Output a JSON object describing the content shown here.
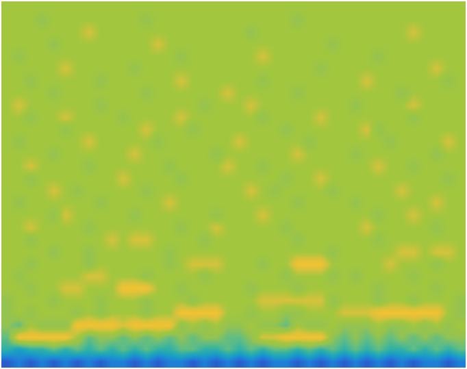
{
  "chart_data": {
    "type": "heatmap",
    "color": "parula",
    "tick_labels": false,
    "zlim": [
      0,
      10
    ],
    "z": [
      [
        7,
        7,
        7,
        7,
        7,
        7,
        7,
        7,
        7,
        7,
        7,
        7,
        7,
        7,
        7,
        7,
        7,
        7,
        7,
        7,
        7,
        7,
        7,
        7,
        7,
        7,
        7,
        7,
        7,
        7,
        7,
        7,
        7,
        7,
        7,
        7,
        7,
        7,
        7,
        7
      ],
      [
        7,
        7,
        7,
        6,
        7,
        7,
        7,
        7,
        7,
        7,
        7,
        7,
        6,
        7,
        7,
        7,
        7,
        7,
        7,
        7,
        7,
        7,
        7,
        7,
        7,
        6,
        7,
        7,
        7,
        7,
        7,
        7,
        7,
        7,
        7,
        7,
        7,
        7,
        7,
        7
      ],
      [
        7,
        7,
        7,
        7,
        7,
        7,
        7,
        8,
        7,
        7,
        7,
        7,
        7,
        7,
        7,
        7,
        7,
        7,
        7,
        7,
        7,
        6,
        7,
        7,
        7,
        7,
        7,
        7,
        7,
        7,
        7,
        7,
        7,
        7,
        7,
        8,
        7,
        7,
        7,
        7
      ],
      [
        7,
        7,
        7,
        7,
        6,
        7,
        7,
        7,
        7,
        7,
        7,
        7,
        7,
        8,
        7,
        7,
        7,
        7,
        7,
        7,
        7,
        7,
        7,
        7,
        7,
        7,
        7,
        7,
        6,
        7,
        7,
        7,
        7,
        7,
        7,
        7,
        7,
        7,
        7,
        7
      ],
      [
        7,
        6,
        7,
        7,
        7,
        7,
        7,
        7,
        7,
        7,
        7,
        7,
        7,
        7,
        7,
        6,
        7,
        7,
        7,
        7,
        7,
        7,
        8,
        7,
        7,
        7,
        7,
        7,
        7,
        7,
        7,
        7,
        6,
        7,
        7,
        7,
        7,
        7,
        7,
        7
      ],
      [
        7,
        7,
        7,
        7,
        7,
        8,
        7,
        7,
        7,
        7,
        7,
        6,
        7,
        7,
        7,
        7,
        7,
        7,
        7,
        7,
        7,
        7,
        7,
        7,
        7,
        7,
        7,
        6,
        7,
        7,
        7,
        7,
        7,
        7,
        7,
        7,
        7,
        8,
        7,
        7
      ],
      [
        7,
        7,
        6,
        7,
        7,
        7,
        7,
        7,
        6,
        7,
        7,
        7,
        7,
        7,
        7,
        8,
        7,
        7,
        7,
        7,
        7,
        7,
        6,
        7,
        7,
        7,
        7,
        7,
        7,
        7,
        7,
        8,
        7,
        7,
        7,
        7,
        7,
        7,
        6,
        7
      ],
      [
        7,
        7,
        7,
        7,
        6,
        7,
        7,
        7,
        7,
        7,
        7,
        7,
        6,
        7,
        7,
        7,
        7,
        7,
        7,
        8,
        7,
        7,
        7,
        7,
        7,
        6,
        7,
        7,
        7,
        7,
        7,
        7,
        7,
        7,
        6,
        7,
        7,
        7,
        7,
        7
      ],
      [
        7,
        8,
        7,
        7,
        7,
        7,
        7,
        7,
        6,
        7,
        7,
        7,
        7,
        7,
        7,
        7,
        7,
        6,
        7,
        7,
        7,
        8,
        7,
        7,
        7,
        7,
        7,
        7,
        7,
        7,
        6,
        7,
        7,
        7,
        7,
        8,
        7,
        7,
        7,
        7
      ],
      [
        7,
        7,
        6,
        7,
        7,
        8,
        7,
        7,
        7,
        7,
        6,
        7,
        7,
        7,
        7,
        8,
        7,
        7,
        7,
        7,
        7,
        7,
        6,
        7,
        7,
        7,
        7,
        8,
        7,
        7,
        7,
        7,
        7,
        7,
        7,
        6,
        7,
        7,
        7,
        7
      ],
      [
        7,
        7,
        7,
        7,
        7,
        6,
        7,
        7,
        7,
        7,
        7,
        7,
        8,
        7,
        7,
        7,
        6,
        7,
        7,
        7,
        7,
        7,
        7,
        7,
        6,
        7,
        7,
        7,
        7,
        7,
        7,
        8,
        6,
        7,
        7,
        7,
        7,
        7,
        7,
        7
      ],
      [
        7,
        6,
        7,
        7,
        7,
        7,
        7,
        8,
        7,
        7,
        7,
        7,
        7,
        6,
        7,
        7,
        7,
        7,
        7,
        7,
        8,
        7,
        7,
        7,
        7,
        7,
        6,
        7,
        7,
        7,
        7,
        7,
        7,
        6,
        7,
        7,
        7,
        7,
        8,
        7
      ],
      [
        7,
        7,
        7,
        7,
        6,
        7,
        7,
        7,
        7,
        7,
        7,
        8,
        7,
        7,
        7,
        7,
        7,
        7,
        6,
        7,
        7,
        7,
        7,
        7,
        7,
        8,
        7,
        7,
        7,
        7,
        6,
        7,
        7,
        7,
        7,
        7,
        7,
        6,
        7,
        7
      ],
      [
        7,
        7,
        8,
        7,
        7,
        7,
        7,
        6,
        7,
        7,
        7,
        7,
        7,
        7,
        6,
        7,
        7,
        7,
        7,
        8,
        7,
        7,
        6,
        7,
        7,
        7,
        7,
        7,
        7,
        7,
        7,
        7,
        8,
        7,
        7,
        6,
        7,
        7,
        7,
        7
      ],
      [
        7,
        7,
        6,
        7,
        7,
        7,
        7,
        7,
        7,
        7,
        8,
        7,
        7,
        7,
        7,
        6,
        7,
        7,
        7,
        7,
        7,
        7,
        7,
        7,
        6,
        7,
        7,
        8,
        7,
        7,
        7,
        7,
        7,
        7,
        7,
        7,
        7,
        7,
        6,
        7
      ],
      [
        7,
        7,
        7,
        7,
        8,
        7,
        6,
        7,
        7,
        7,
        7,
        7,
        6,
        7,
        7,
        7,
        7,
        7,
        7,
        7,
        7,
        8,
        7,
        6,
        7,
        7,
        7,
        7,
        6,
        7,
        7,
        7,
        7,
        7,
        8,
        7,
        7,
        7,
        7,
        7
      ],
      [
        7,
        6,
        7,
        7,
        7,
        7,
        7,
        7,
        6,
        7,
        7,
        7,
        7,
        7,
        8,
        7,
        7,
        7,
        7,
        7,
        7,
        7,
        7,
        7,
        7,
        6,
        7,
        7,
        7,
        7,
        6,
        7,
        7,
        7,
        7,
        7,
        7,
        8,
        7,
        7
      ],
      [
        7,
        7,
        7,
        7,
        6,
        8,
        7,
        7,
        7,
        7,
        7,
        6,
        7,
        7,
        7,
        7,
        7,
        7,
        6,
        7,
        7,
        7,
        8,
        7,
        7,
        7,
        7,
        7,
        7,
        7,
        7,
        7,
        6,
        7,
        7,
        8,
        7,
        7,
        7,
        7
      ],
      [
        7,
        7,
        8,
        7,
        7,
        7,
        7,
        6,
        7,
        7,
        7,
        7,
        7,
        7,
        7,
        6,
        7,
        7,
        8,
        7,
        7,
        7,
        7,
        7,
        6,
        7,
        7,
        7,
        7,
        7,
        7,
        8,
        7,
        7,
        7,
        7,
        7,
        6,
        7,
        7
      ],
      [
        7,
        7,
        6,
        7,
        7,
        7,
        7,
        7,
        7,
        8,
        7,
        8,
        8,
        7,
        7,
        7,
        7,
        6,
        7,
        7,
        7,
        7,
        7,
        7,
        7,
        6,
        7,
        7,
        7,
        7,
        7,
        7,
        6,
        7,
        7,
        7,
        7,
        7,
        7,
        7
      ],
      [
        7,
        7,
        7,
        7,
        6,
        7,
        7,
        6,
        7,
        7,
        7,
        7,
        7,
        7,
        6,
        7,
        7,
        7,
        7,
        7,
        7,
        7,
        7,
        7,
        7,
        7,
        7,
        7,
        6,
        7,
        7,
        7,
        7,
        7,
        8,
        8,
        7,
        8,
        8,
        7
      ],
      [
        7,
        7,
        6,
        7,
        7,
        7,
        7,
        6,
        7,
        7,
        7,
        7,
        7,
        7,
        6,
        7,
        8,
        8,
        8,
        7,
        7,
        7,
        6,
        7,
        7,
        9,
        9,
        9,
        7,
        7,
        7,
        7,
        7,
        8,
        7,
        7,
        7,
        6,
        7,
        7
      ],
      [
        7,
        6,
        7,
        7,
        7,
        7,
        7,
        8,
        8,
        7,
        7,
        7,
        6,
        7,
        7,
        7,
        7,
        6,
        7,
        7,
        7,
        7,
        7,
        7,
        6,
        7,
        7,
        7,
        6,
        7,
        6,
        7,
        7,
        7,
        7,
        6,
        7,
        7,
        7,
        7
      ],
      [
        7,
        7,
        6,
        7,
        7,
        8,
        8,
        7,
        7,
        7,
        9,
        9,
        9,
        7,
        7,
        6,
        7,
        7,
        7,
        7,
        7,
        6,
        7,
        7,
        7,
        6,
        7,
        7,
        7,
        7,
        7,
        7,
        6,
        7,
        7,
        7,
        7,
        6,
        7,
        7
      ],
      [
        6,
        7,
        7,
        7,
        6,
        7,
        7,
        7,
        6,
        7,
        7,
        7,
        6,
        7,
        7,
        7,
        6,
        7,
        7,
        7,
        7,
        7,
        8,
        8,
        8,
        8,
        8,
        8,
        6,
        7,
        7,
        7,
        6,
        7,
        7,
        6,
        7,
        7,
        7,
        6
      ],
      [
        6,
        7,
        6,
        7,
        7,
        7,
        6,
        7,
        6,
        7,
        7,
        7,
        6,
        7,
        7,
        9,
        9,
        9,
        9,
        7,
        7,
        6,
        7,
        7,
        6,
        6,
        7,
        7,
        7,
        8,
        8,
        8,
        9,
        9,
        9,
        9,
        9,
        9,
        7,
        6
      ],
      [
        6,
        5,
        7,
        6,
        6,
        6,
        9,
        9,
        9,
        9,
        8,
        9,
        9,
        9,
        9,
        6,
        7,
        6,
        7,
        6,
        6,
        7,
        6,
        6,
        5,
        7,
        6,
        6,
        7,
        6,
        6,
        6,
        7,
        6,
        6,
        7,
        6,
        7,
        6,
        7
      ],
      [
        5,
        9,
        9,
        9,
        9,
        9,
        7,
        5,
        6,
        6,
        5,
        6,
        5,
        6,
        5,
        6,
        5,
        6,
        6,
        5,
        5,
        6,
        8,
        8,
        9,
        9,
        9,
        9,
        6,
        5,
        6,
        5,
        6,
        5,
        6,
        5,
        6,
        5,
        6,
        6
      ],
      [
        4,
        3,
        4,
        4,
        5,
        4,
        5,
        4,
        5,
        4,
        5,
        4,
        5,
        4,
        4,
        5,
        5,
        4,
        4,
        5,
        4,
        5,
        4,
        5,
        5,
        4,
        5,
        4,
        5,
        4,
        5,
        4,
        5,
        4,
        4,
        5,
        4,
        5,
        4,
        5
      ],
      [
        1,
        2,
        1,
        2,
        1,
        2,
        1,
        2,
        1,
        2,
        2,
        1,
        2,
        1,
        2,
        2,
        1,
        2,
        1,
        2,
        1,
        2,
        1,
        2,
        2,
        1,
        2,
        1,
        2,
        1,
        2,
        1,
        2,
        1,
        2,
        1,
        2,
        2,
        1,
        2
      ]
    ]
  }
}
